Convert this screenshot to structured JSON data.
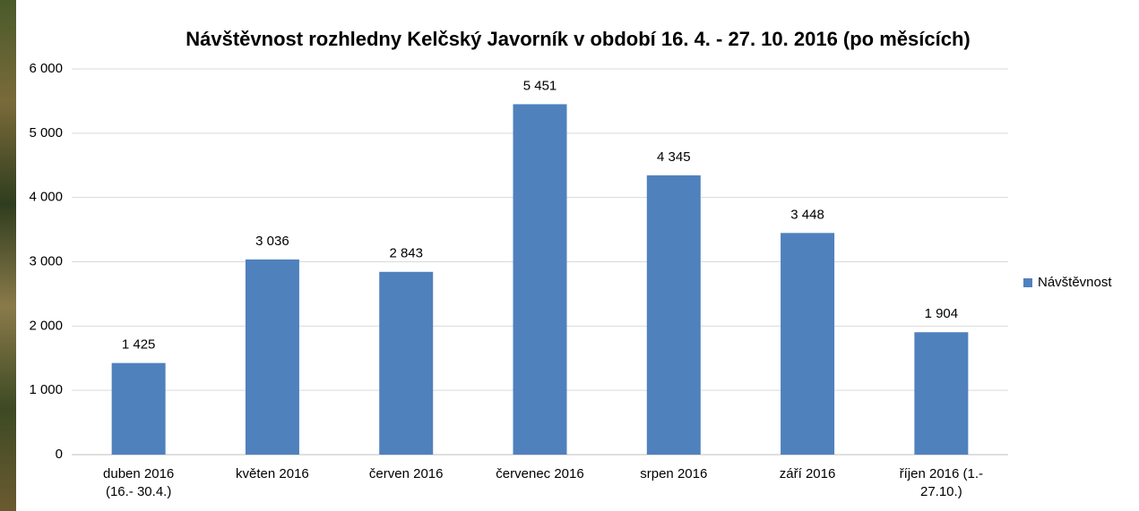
{
  "chart_data": {
    "type": "bar",
    "title": "Návštěvnost rozhledny Kelčský Javorník v období 16. 4. - 27. 10. 2016 (po měsících)",
    "categories": [
      "duben 2016 (16.- 30.4.)",
      "květen 2016",
      "červen 2016",
      "červenec 2016",
      "srpen 2016",
      "září 2016",
      "říjen 2016 (1.- 27.10.)"
    ],
    "series": [
      {
        "name": "Návštěvnost",
        "color": "#4f81bd",
        "values": [
          1425,
          3036,
          2843,
          5451,
          4345,
          3448,
          1904
        ],
        "value_labels": [
          "1 425",
          "3 036",
          "2 843",
          "5 451",
          "4 345",
          "3 448",
          "1 904"
        ]
      }
    ],
    "ylim": [
      0,
      6000
    ],
    "yticks": [
      {
        "value": 0,
        "label": "0"
      },
      {
        "value": 1000,
        "label": "1 000"
      },
      {
        "value": 2000,
        "label": "2 000"
      },
      {
        "value": 3000,
        "label": "3 000"
      },
      {
        "value": 4000,
        "label": "4 000"
      },
      {
        "value": 5000,
        "label": "5 000"
      },
      {
        "value": 6000,
        "label": "6 000"
      }
    ],
    "grid": true,
    "legend": "right"
  }
}
